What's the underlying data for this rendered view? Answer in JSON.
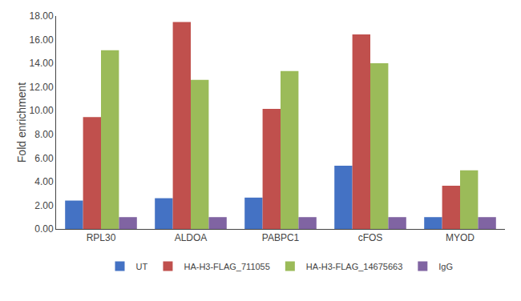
{
  "chart_data": {
    "type": "bar",
    "categories": [
      "RPL30",
      "ALDOA",
      "PABPC1",
      "cFOS",
      "MYOD"
    ],
    "series": [
      {
        "name": "UT",
        "color": "#4472C4",
        "values": [
          2.4,
          2.6,
          2.65,
          5.35,
          1.0
        ]
      },
      {
        "name": "HA-H3-FLAG_711055",
        "color": "#C0504D",
        "values": [
          9.45,
          17.5,
          10.15,
          16.45,
          3.65
        ]
      },
      {
        "name": "HA-H3-FLAG_14675663",
        "color": "#9BBB59",
        "values": [
          15.1,
          12.6,
          13.35,
          14.0,
          4.95
        ]
      },
      {
        "name": "IgG",
        "color": "#8064A2",
        "values": [
          1.0,
          1.0,
          1.0,
          1.0,
          1.0
        ]
      }
    ],
    "ylabel": "Fold enrichment",
    "ylim": [
      0,
      18.0
    ],
    "yticks": [
      {
        "value": 0.0,
        "label": "0.00"
      },
      {
        "value": 2.0,
        "label": "2.00"
      },
      {
        "value": 4.0,
        "label": "4.00"
      },
      {
        "value": 6.0,
        "label": "6.00"
      },
      {
        "value": 8.0,
        "label": "8.00"
      },
      {
        "value": 10.0,
        "label": "10.00"
      },
      {
        "value": 12.0,
        "label": "12.00"
      },
      {
        "value": 14.0,
        "label": "14.00"
      },
      {
        "value": 16.0,
        "label": "16.00"
      },
      {
        "value": 18.0,
        "label": "18.00"
      }
    ],
    "grid": false,
    "legend": "bottom"
  }
}
